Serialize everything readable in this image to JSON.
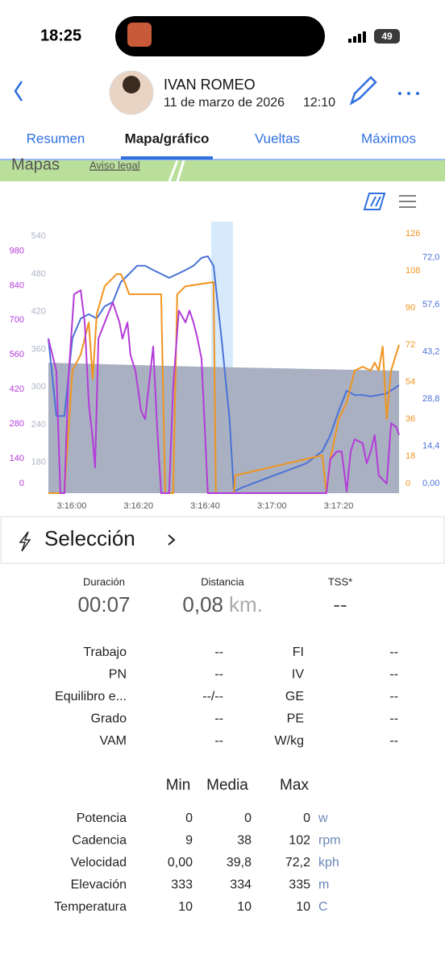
{
  "status": {
    "time": "18:25",
    "battery": "49"
  },
  "header": {
    "name": "IVAN ROMEO",
    "date": "11 de marzo de 2026",
    "time": "12:10"
  },
  "tabs": [
    "Resumen",
    "Mapa/gráfico",
    "Vueltas",
    "Máximos"
  ],
  "active_tab": 1,
  "map": {
    "brand": "Mapas",
    "legal": "Aviso legal"
  },
  "chart_data": {
    "type": "line",
    "xlim": [
      11753,
      11858.1
    ],
    "xticks": [
      {
        "value": 11760,
        "label": "3:16:00"
      },
      {
        "value": 11780,
        "label": "3:16:20"
      },
      {
        "value": 11800,
        "label": "3:16:40"
      },
      {
        "value": 11820,
        "label": "3:17:00"
      },
      {
        "value": 11840,
        "label": "3:17:20"
      }
    ],
    "highlight": [
      11801.8,
      11808.3
    ],
    "axes": [
      {
        "position": "left",
        "color": "#b43bd9",
        "lim": [
          0,
          1050
        ],
        "ticks": [
          0,
          140,
          280,
          420,
          560,
          700,
          840,
          980
        ]
      },
      {
        "position": "left-inner",
        "color": "#aeb4c6",
        "lim": [
          131,
          544
        ],
        "ticks": [
          180,
          240,
          300,
          360,
          420,
          480,
          540
        ]
      },
      {
        "position": "right-inner",
        "color": "#f0941e",
        "lim": [
          0,
          126
        ],
        "ticks": [
          0,
          18,
          36,
          54,
          72,
          90,
          108,
          126
        ]
      },
      {
        "position": "right",
        "color": "#4a72d6",
        "lim": [
          0,
          79.3
        ],
        "ticks": [
          {
            "value": 0,
            "label": "0,00"
          },
          {
            "value": 14.4,
            "label": "14,4"
          },
          {
            "value": 28.8,
            "label": "28,8"
          },
          {
            "value": 43.2,
            "label": "43,2"
          },
          {
            "value": 57.6,
            "label": "57,6"
          },
          {
            "value": 72,
            "label": "72,0"
          }
        ]
      }
    ],
    "series": [
      {
        "axis": "left-inner",
        "kind": "area",
        "color": "#a9b0c2",
        "x": [
          11753,
          11798.9,
          11858.1
        ],
        "values": [
          338.7,
          332.3,
          325.9
        ]
      },
      {
        "axis": "right",
        "kind": "line",
        "color": "#4a72d6",
        "x": [
          11753,
          11755.4,
          11757.8,
          11760.2,
          11762.7,
          11765.1,
          11767.5,
          11769.9,
          11772.3,
          11774.7,
          11777.2,
          11779.6,
          11782,
          11784.4,
          11786.8,
          11789.2,
          11791.7,
          11794.1,
          11796.5,
          11798.9,
          11800.8,
          11802.5,
          11804.9,
          11807.3,
          11808.6,
          11811,
          11820.6,
          11830.3,
          11835.1,
          11837.5,
          11840,
          11842.4,
          11844.8,
          11847.2,
          11849.6,
          11852,
          11854.4,
          11858.1
        ],
        "values": [
          47.3,
          23.6,
          23.6,
          47.3,
          53.4,
          54.7,
          53.4,
          57.1,
          58.4,
          64.5,
          67,
          69.5,
          69.5,
          68.2,
          67,
          65.8,
          67,
          68.2,
          69.5,
          71.9,
          72.4,
          69.5,
          47.3,
          22.7,
          0.5,
          1.7,
          5.4,
          9.1,
          12.8,
          17.7,
          25.1,
          31.3,
          30,
          30,
          29.6,
          30,
          30.5,
          33
        ]
      },
      {
        "axis": "right-inner",
        "kind": "line",
        "color": "#f0941e",
        "x": [
          11753,
          11757.8,
          11760.2,
          11762.7,
          11765.1,
          11766.3,
          11767.5,
          11769.9,
          11773.5,
          11774.7,
          11775.9,
          11777.2,
          11786.8,
          11788,
          11790.4,
          11791.6,
          11794.1,
          11802.5,
          11803.2,
          11808.6,
          11809,
          11835.1,
          11836.3,
          11837.5,
          11840,
          11842.4,
          11844.8,
          11847.2,
          11849.6,
          11850.8,
          11852,
          11853.2,
          11854.4,
          11855.7,
          11858.1
        ],
        "values": [
          0,
          0,
          59.5,
          67.3,
          82.9,
          55.5,
          86.9,
          100.5,
          106.4,
          106.4,
          102.5,
          96.6,
          96.6,
          0,
          0,
          96.6,
          100.5,
          102.5,
          0,
          0,
          8.6,
          18.4,
          0,
          16.4,
          36,
          43.8,
          59.5,
          61.4,
          59.5,
          63.4,
          59.5,
          71.2,
          36,
          59.5,
          72
        ]
      },
      {
        "axis": "left",
        "kind": "line",
        "color": "#b43bd9",
        "x": [
          11753,
          11755.4,
          11756.6,
          11757.8,
          11759,
          11760.7,
          11762.7,
          11763.9,
          11765.1,
          11766.3,
          11767,
          11768,
          11769.9,
          11772.3,
          11774.3,
          11775.2,
          11776.7,
          11777.6,
          11779.1,
          11780.8,
          11782,
          11784.4,
          11785.6,
          11786.8,
          11789.2,
          11790.4,
          11792.1,
          11794.1,
          11795.3,
          11796.5,
          11797.7,
          11798.9,
          11800.8,
          11802.5,
          11836.3,
          11837.5,
          11839.5,
          11840.9,
          11842.4,
          11843.6,
          11844.8,
          11847.2,
          11848.4,
          11849.6,
          11850.8,
          11852,
          11854.4,
          11855.7,
          11857.3,
          11858.1
        ],
        "values": [
          625,
          495,
          0,
          0,
          463,
          805,
          821,
          691,
          365,
          218,
          104,
          625,
          691,
          772,
          691,
          625,
          691,
          560,
          495,
          332,
          300,
          593,
          267,
          0,
          0,
          430,
          739,
          691,
          739,
          691,
          625,
          544,
          0,
          0,
          0,
          137,
          169,
          169,
          7,
          169,
          218,
          202,
          121,
          169,
          235,
          72,
          39,
          283,
          267,
          235
        ]
      }
    ]
  },
  "selection": {
    "title": "Selección"
  },
  "summary": [
    {
      "label": "Duración",
      "value": "00:07"
    },
    {
      "label": "Distancia",
      "value": "0,08",
      "unit": "km."
    },
    {
      "label": "TSS*",
      "value": "--"
    }
  ],
  "metrics": [
    [
      "Trabajo",
      "--",
      "FI",
      "--"
    ],
    [
      "PN",
      "--",
      "IV",
      "--"
    ],
    [
      "Equilibro e...",
      "--/--",
      "GE",
      "--"
    ],
    [
      "Grado",
      "--",
      "PE",
      "--"
    ],
    [
      "VAM",
      "--",
      "W/kg",
      "--"
    ]
  ],
  "stats": {
    "headers": [
      "Min",
      "Media",
      "Max"
    ],
    "rows": [
      [
        "Potencia",
        "0",
        "0",
        "0",
        "w"
      ],
      [
        "Cadencia",
        "9",
        "38",
        "102",
        "rpm"
      ],
      [
        "Velocidad",
        "0,00",
        "39,8",
        "72,2",
        "kph"
      ],
      [
        "Elevación",
        "333",
        "334",
        "335",
        "m"
      ],
      [
        "Temperatura",
        "10",
        "10",
        "10",
        "C"
      ]
    ]
  }
}
